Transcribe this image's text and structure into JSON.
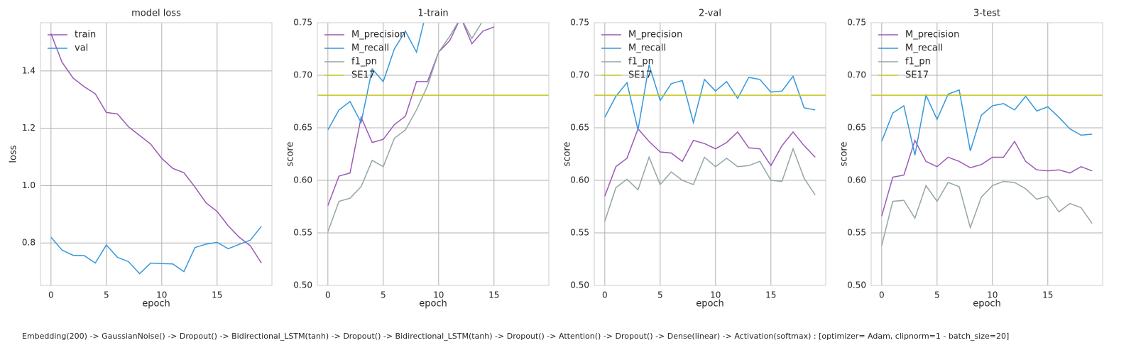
{
  "chart_data": [
    {
      "type": "line",
      "title": "model loss",
      "xlabel": "epoch",
      "ylabel": "loss",
      "x": [
        0,
        1,
        2,
        3,
        4,
        5,
        6,
        7,
        8,
        9,
        10,
        11,
        12,
        13,
        14,
        15,
        16,
        17,
        18,
        19
      ],
      "xlim": [
        -0.95,
        19.95
      ],
      "xticks": [
        0,
        5,
        10,
        15
      ],
      "ylim": [
        0.652,
        1.568
      ],
      "yticks": [
        0.8,
        {
          "value": 1,
          "label": "1.0"
        },
        1.2,
        1.4
      ],
      "grid": true,
      "legend": "upper left",
      "series": [
        {
          "name": "train",
          "color": "#9b59b6",
          "values": [
            1.53,
            1.43,
            1.375,
            1.345,
            1.32,
            1.255,
            1.25,
            1.205,
            1.175,
            1.145,
            1.095,
            1.06,
            1.045,
            0.995,
            0.94,
            0.91,
            0.86,
            0.82,
            0.79,
            0.73
          ]
        },
        {
          "name": "val",
          "color": "#3498db",
          "values": [
            0.82,
            0.775,
            0.757,
            0.756,
            0.73,
            0.793,
            0.75,
            0.735,
            0.693,
            0.73,
            0.728,
            0.727,
            0.7,
            0.784,
            0.796,
            0.802,
            0.78,
            0.795,
            0.81,
            0.858
          ]
        }
      ]
    },
    {
      "type": "line",
      "title": "1-train",
      "xlabel": "epoch",
      "ylabel": "score",
      "x": [
        0,
        1,
        2,
        3,
        4,
        5,
        6,
        7,
        8,
        9,
        10,
        11,
        12,
        13,
        14,
        15,
        16,
        17,
        18,
        19
      ],
      "xlim": [
        -0.95,
        19.95
      ],
      "xticks": [
        0,
        5,
        10,
        15
      ],
      "ylim": [
        0.5,
        0.75
      ],
      "yticks": [
        {
          "value": 0.5,
          "label": "0.50"
        },
        0.55,
        {
          "value": 0.6,
          "label": "0.60"
        },
        0.65,
        {
          "value": 0.7,
          "label": "0.70"
        },
        0.75
      ],
      "grid": true,
      "legend": "upper left",
      "series": [
        {
          "name": "M_precision",
          "color": "#9b59b6",
          "values": [
            0.576,
            0.604,
            0.607,
            0.66,
            0.636,
            0.639,
            0.653,
            0.661,
            0.694,
            0.694,
            0.722,
            0.733,
            0.755,
            0.73,
            0.742,
            0.746,
            null,
            null,
            null,
            null
          ]
        },
        {
          "name": "M_recall",
          "color": "#3498db",
          "values": [
            0.648,
            0.667,
            0.675,
            0.655,
            0.706,
            0.694,
            0.725,
            0.742,
            0.722,
            0.765,
            null,
            null,
            null,
            null,
            null,
            null,
            null,
            null,
            null,
            null
          ]
        },
        {
          "name": "f1_pn",
          "color": "#95a5a6",
          "values": [
            0.551,
            0.58,
            0.583,
            0.594,
            0.619,
            0.613,
            0.64,
            0.648,
            0.667,
            0.69,
            0.722,
            0.737,
            0.755,
            0.735,
            0.752,
            null,
            null,
            null,
            null,
            null
          ]
        },
        {
          "name": "SE17",
          "color": "#c4c41e",
          "hline": 0.681
        }
      ]
    },
    {
      "type": "line",
      "title": "2-val",
      "xlabel": "epoch",
      "ylabel": "score",
      "x": [
        0,
        1,
        2,
        3,
        4,
        5,
        6,
        7,
        8,
        9,
        10,
        11,
        12,
        13,
        14,
        15,
        16,
        17,
        18,
        19
      ],
      "xlim": [
        -0.95,
        19.95
      ],
      "xticks": [
        0,
        5,
        10,
        15
      ],
      "ylim": [
        0.5,
        0.75
      ],
      "yticks": [
        {
          "value": 0.5,
          "label": "0.50"
        },
        0.55,
        {
          "value": 0.6,
          "label": "0.60"
        },
        0.65,
        {
          "value": 0.7,
          "label": "0.70"
        },
        0.75
      ],
      "grid": true,
      "legend": "upper left",
      "series": [
        {
          "name": "M_precision",
          "color": "#9b59b6",
          "values": [
            0.585,
            0.613,
            0.621,
            0.649,
            0.637,
            0.627,
            0.626,
            0.618,
            0.638,
            0.635,
            0.63,
            0.636,
            0.646,
            0.631,
            0.63,
            0.614,
            0.633,
            0.646,
            0.633,
            0.622
          ]
        },
        {
          "name": "M_recall",
          "color": "#3498db",
          "values": [
            0.66,
            0.68,
            0.693,
            0.648,
            0.71,
            0.676,
            0.692,
            0.695,
            0.655,
            0.696,
            0.685,
            0.694,
            0.678,
            0.698,
            0.696,
            0.684,
            0.685,
            0.699,
            0.669,
            0.667
          ]
        },
        {
          "name": "f1_pn",
          "color": "#95a5a6",
          "values": [
            0.561,
            0.593,
            0.601,
            0.591,
            0.622,
            0.596,
            0.608,
            0.6,
            0.596,
            0.622,
            0.613,
            0.621,
            0.613,
            0.614,
            0.618,
            0.6,
            0.599,
            0.63,
            0.602,
            0.586
          ]
        },
        {
          "name": "SE17",
          "color": "#c4c41e",
          "hline": 0.681
        }
      ]
    },
    {
      "type": "line",
      "title": "3-test",
      "xlabel": "epoch",
      "ylabel": "score",
      "x": [
        0,
        1,
        2,
        3,
        4,
        5,
        6,
        7,
        8,
        9,
        10,
        11,
        12,
        13,
        14,
        15,
        16,
        17,
        18,
        19
      ],
      "xlim": [
        -0.95,
        19.95
      ],
      "xticks": [
        0,
        5,
        10,
        15
      ],
      "ylim": [
        0.5,
        0.75
      ],
      "yticks": [
        {
          "value": 0.5,
          "label": "0.50"
        },
        0.55,
        {
          "value": 0.6,
          "label": "0.60"
        },
        0.65,
        {
          "value": 0.7,
          "label": "0.70"
        },
        0.75
      ],
      "grid": true,
      "legend": "upper left",
      "series": [
        {
          "name": "M_precision",
          "color": "#9b59b6",
          "values": [
            0.566,
            0.603,
            0.605,
            0.638,
            0.618,
            0.613,
            0.622,
            0.618,
            0.612,
            0.615,
            0.622,
            0.622,
            0.637,
            0.618,
            0.61,
            0.609,
            0.61,
            0.607,
            0.613,
            0.609
          ]
        },
        {
          "name": "M_recall",
          "color": "#3498db",
          "values": [
            0.637,
            0.664,
            0.671,
            0.624,
            0.681,
            0.658,
            0.682,
            0.686,
            0.628,
            0.662,
            0.671,
            0.673,
            0.667,
            0.68,
            0.666,
            0.67,
            0.66,
            0.649,
            0.643,
            0.644
          ]
        },
        {
          "name": "f1_pn",
          "color": "#95a5a6",
          "values": [
            0.538,
            0.58,
            0.581,
            0.564,
            0.595,
            0.58,
            0.598,
            0.594,
            0.555,
            0.584,
            0.595,
            0.599,
            0.598,
            0.592,
            0.582,
            0.585,
            0.57,
            0.578,
            0.574,
            0.559
          ]
        },
        {
          "name": "SE17",
          "color": "#c4c41e",
          "hline": 0.681
        }
      ]
    }
  ],
  "caption": "Embedding(200) -> GaussianNoise() -> Dropout() -> Bidirectional_LSTM(tanh) -> Dropout() -> Bidirectional_LSTM(tanh) -> Dropout() -> Attention() -> Dropout() -> Dense(linear) -> Activation(softmax) : [optimizer= Adam, clipnorm=1 - batch_size=20]"
}
